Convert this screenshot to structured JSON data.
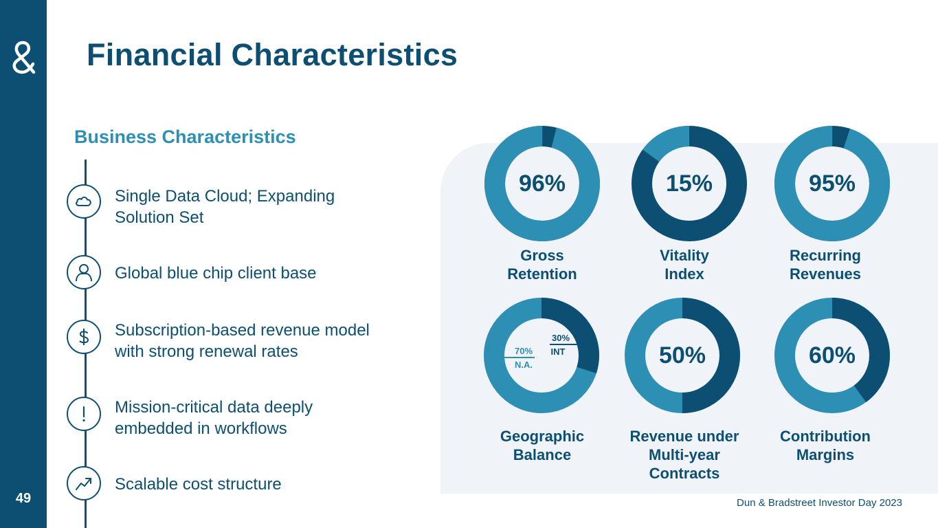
{
  "slide": {
    "title": "Financial Characteristics",
    "page_number": "49",
    "footer": "Dun & Bradstreet Investor Day 2023",
    "logo_icon": "ampersand-logo-icon"
  },
  "business": {
    "heading": "Business Characteristics",
    "items": [
      {
        "line1": "Single Data Cloud; Expanding",
        "line2": "Solution Set",
        "icon": "cloud-icon"
      },
      {
        "line1": "Global blue chip client base",
        "line2": "",
        "icon": "person-icon"
      },
      {
        "line1": "Subscription-based revenue model",
        "line2": "with strong renewal rates",
        "icon": "dollar-icon"
      },
      {
        "line1": "Mission-critical data deeply",
        "line2": "embedded in workflows",
        "icon": "exclamation-icon"
      },
      {
        "line1": "Scalable cost structure",
        "line2": "",
        "icon": "trend-up-icon"
      }
    ]
  },
  "colors": {
    "dark": "#0d4f72",
    "light": "#2e8fb5",
    "panel": "#f0f4f9"
  },
  "metrics": [
    {
      "value_text": "96%",
      "fraction": 0.96,
      "highlight_color": "#2e8fb5",
      "rest_color": "#0d4f72",
      "label_line1": "Gross",
      "label_line2": "Retention",
      "label_line3": ""
    },
    {
      "value_text": "15%",
      "fraction": 0.15,
      "highlight_color": "#2e8fb5",
      "rest_color": "#0d4f72",
      "label_line1": "Vitality",
      "label_line2": "Index",
      "label_line3": ""
    },
    {
      "value_text": "95%",
      "fraction": 0.95,
      "highlight_color": "#2e8fb5",
      "rest_color": "#0d4f72",
      "label_line1": "Recurring",
      "label_line2": "Revenues",
      "label_line3": ""
    },
    {
      "value_text": "",
      "fraction": 0.3,
      "highlight_color": "#0d4f72",
      "rest_color": "#2e8fb5",
      "label_line1": "Geographic",
      "label_line2": "Balance",
      "label_line3": "",
      "geo": {
        "na_pct": "70%",
        "na_label": "N.A.",
        "int_pct": "30%",
        "int_label": "INT"
      }
    },
    {
      "value_text": "50%",
      "fraction": 0.5,
      "highlight_color": "#0d4f72",
      "rest_color": "#2e8fb5",
      "label_line1": "Revenue under",
      "label_line2": "Multi-year",
      "label_line3": "Contracts"
    },
    {
      "value_text": "60%",
      "fraction": 0.4,
      "highlight_color": "#0d4f72",
      "rest_color": "#2e8fb5",
      "label_line1": "Contribution",
      "label_line2": "Margins",
      "label_line3": ""
    }
  ]
}
